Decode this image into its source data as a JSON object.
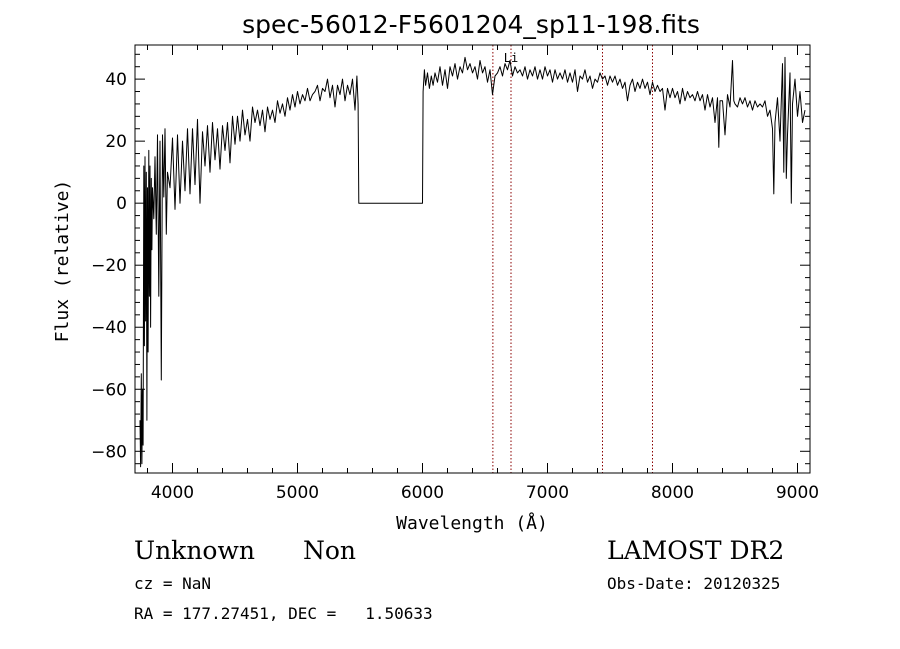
{
  "chart_data": {
    "type": "line",
    "title": "spec-56012-F5601204_sp11-198.fits",
    "xlabel": "Wavelength (Å)",
    "ylabel": "Flux (relative)",
    "xlim": [
      3700,
      9100
    ],
    "ylim": [
      -87,
      51
    ],
    "x_ticks": [
      4000,
      5000,
      6000,
      7000,
      8000,
      9000
    ],
    "y_ticks": [
      -80,
      -60,
      -40,
      -20,
      0,
      20,
      40
    ],
    "grid": false,
    "line_color": "#000000",
    "marker_color": "#8b0000",
    "markers": [
      {
        "x": 6563,
        "label": ""
      },
      {
        "x": 6708,
        "label": "Li"
      },
      {
        "x": 7440,
        "label": ""
      },
      {
        "x": 7840,
        "label": ""
      }
    ],
    "series": [
      {
        "values": [
          [
            3740,
            -70
          ],
          [
            3745,
            -85
          ],
          [
            3750,
            -55
          ],
          [
            3755,
            -84
          ],
          [
            3760,
            -60
          ],
          [
            3765,
            -78
          ],
          [
            3770,
            12
          ],
          [
            3775,
            -46
          ],
          [
            3780,
            15
          ],
          [
            3785,
            -38
          ],
          [
            3790,
            10
          ],
          [
            3795,
            -70
          ],
          [
            3800,
            5
          ],
          [
            3805,
            -48
          ],
          [
            3810,
            17
          ],
          [
            3815,
            -30
          ],
          [
            3820,
            12
          ],
          [
            3825,
            -40
          ],
          [
            3830,
            8
          ],
          [
            3835,
            -15
          ],
          [
            3840,
            5
          ],
          [
            3850,
            -5
          ],
          [
            3860,
            15
          ],
          [
            3870,
            -10
          ],
          [
            3880,
            22
          ],
          [
            3890,
            -30
          ],
          [
            3900,
            20
          ],
          [
            3910,
            -57
          ],
          [
            3920,
            22
          ],
          [
            3930,
            2
          ],
          [
            3940,
            24
          ],
          [
            3950,
            -10
          ],
          [
            3960,
            10
          ],
          [
            3980,
            5
          ],
          [
            4000,
            21
          ],
          [
            4020,
            -2
          ],
          [
            4040,
            22
          ],
          [
            4060,
            0
          ],
          [
            4080,
            20
          ],
          [
            4100,
            4
          ],
          [
            4120,
            24
          ],
          [
            4140,
            3
          ],
          [
            4160,
            24
          ],
          [
            4180,
            6
          ],
          [
            4200,
            27
          ],
          [
            4220,
            0
          ],
          [
            4240,
            23
          ],
          [
            4260,
            12
          ],
          [
            4280,
            25
          ],
          [
            4300,
            10
          ],
          [
            4320,
            26
          ],
          [
            4340,
            14
          ],
          [
            4360,
            24
          ],
          [
            4380,
            11
          ],
          [
            4400,
            25
          ],
          [
            4420,
            17
          ],
          [
            4440,
            26
          ],
          [
            4460,
            13
          ],
          [
            4480,
            28
          ],
          [
            4500,
            19
          ],
          [
            4520,
            28
          ],
          [
            4540,
            20
          ],
          [
            4560,
            30
          ],
          [
            4580,
            22
          ],
          [
            4600,
            27
          ],
          [
            4620,
            20
          ],
          [
            4640,
            31
          ],
          [
            4660,
            26
          ],
          [
            4680,
            30
          ],
          [
            4700,
            25
          ],
          [
            4720,
            30
          ],
          [
            4740,
            23
          ],
          [
            4760,
            31
          ],
          [
            4780,
            27
          ],
          [
            4800,
            30
          ],
          [
            4820,
            26
          ],
          [
            4840,
            33
          ],
          [
            4860,
            29
          ],
          [
            4880,
            32
          ],
          [
            4900,
            28
          ],
          [
            4920,
            34
          ],
          [
            4940,
            30
          ],
          [
            4960,
            35
          ],
          [
            4980,
            31
          ],
          [
            5000,
            36
          ],
          [
            5020,
            32
          ],
          [
            5040,
            35
          ],
          [
            5060,
            33
          ],
          [
            5080,
            37
          ],
          [
            5100,
            33
          ],
          [
            5120,
            35
          ],
          [
            5140,
            36
          ],
          [
            5160,
            38
          ],
          [
            5180,
            33
          ],
          [
            5200,
            37
          ],
          [
            5220,
            36
          ],
          [
            5240,
            40
          ],
          [
            5260,
            34
          ],
          [
            5280,
            38
          ],
          [
            5300,
            31
          ],
          [
            5320,
            38
          ],
          [
            5340,
            35
          ],
          [
            5360,
            40
          ],
          [
            5380,
            33
          ],
          [
            5400,
            38
          ],
          [
            5420,
            35
          ],
          [
            5440,
            40
          ],
          [
            5460,
            30
          ],
          [
            5475,
            41
          ],
          [
            5485,
            32
          ],
          [
            5490,
            0
          ],
          [
            6000,
            0
          ],
          [
            6005,
            36
          ],
          [
            6015,
            43
          ],
          [
            6025,
            38
          ],
          [
            6040,
            42
          ],
          [
            6055,
            37
          ],
          [
            6070,
            41
          ],
          [
            6085,
            38
          ],
          [
            6100,
            42
          ],
          [
            6120,
            39
          ],
          [
            6140,
            44
          ],
          [
            6160,
            38
          ],
          [
            6180,
            43
          ],
          [
            6200,
            37
          ],
          [
            6220,
            44
          ],
          [
            6240,
            41
          ],
          [
            6260,
            45
          ],
          [
            6280,
            40
          ],
          [
            6300,
            44
          ],
          [
            6320,
            42
          ],
          [
            6340,
            47
          ],
          [
            6360,
            43
          ],
          [
            6380,
            45
          ],
          [
            6400,
            42
          ],
          [
            6420,
            44
          ],
          [
            6440,
            40
          ],
          [
            6460,
            46
          ],
          [
            6480,
            42
          ],
          [
            6500,
            44
          ],
          [
            6520,
            39
          ],
          [
            6540,
            43
          ],
          [
            6560,
            35
          ],
          [
            6580,
            41
          ],
          [
            6600,
            42
          ],
          [
            6620,
            44
          ],
          [
            6640,
            41
          ],
          [
            6660,
            45
          ],
          [
            6680,
            43
          ],
          [
            6700,
            46
          ],
          [
            6720,
            41
          ],
          [
            6740,
            44
          ],
          [
            6760,
            42
          ],
          [
            6780,
            43
          ],
          [
            6800,
            41
          ],
          [
            6820,
            44
          ],
          [
            6840,
            40
          ],
          [
            6860,
            43
          ],
          [
            6880,
            41
          ],
          [
            6900,
            44
          ],
          [
            6920,
            40
          ],
          [
            6940,
            43
          ],
          [
            6960,
            40
          ],
          [
            6980,
            44
          ],
          [
            7000,
            41
          ],
          [
            7020,
            43
          ],
          [
            7040,
            39
          ],
          [
            7060,
            43
          ],
          [
            7080,
            40
          ],
          [
            7100,
            42
          ],
          [
            7120,
            40
          ],
          [
            7140,
            43
          ],
          [
            7160,
            39
          ],
          [
            7180,
            42
          ],
          [
            7200,
            39
          ],
          [
            7220,
            43
          ],
          [
            7240,
            36
          ],
          [
            7260,
            41
          ],
          [
            7280,
            40
          ],
          [
            7300,
            43
          ],
          [
            7320,
            39
          ],
          [
            7340,
            41
          ],
          [
            7360,
            37
          ],
          [
            7380,
            40
          ],
          [
            7400,
            39
          ],
          [
            7420,
            42
          ],
          [
            7440,
            40
          ],
          [
            7460,
            41
          ],
          [
            7480,
            38
          ],
          [
            7500,
            41
          ],
          [
            7520,
            39
          ],
          [
            7540,
            41
          ],
          [
            7560,
            38
          ],
          [
            7580,
            40
          ],
          [
            7600,
            37
          ],
          [
            7620,
            39
          ],
          [
            7640,
            33
          ],
          [
            7660,
            38
          ],
          [
            7680,
            40
          ],
          [
            7700,
            36
          ],
          [
            7720,
            39
          ],
          [
            7740,
            37
          ],
          [
            7760,
            40
          ],
          [
            7780,
            37
          ],
          [
            7800,
            39
          ],
          [
            7820,
            35
          ],
          [
            7840,
            39
          ],
          [
            7860,
            36
          ],
          [
            7880,
            38
          ],
          [
            7900,
            36
          ],
          [
            7920,
            37
          ],
          [
            7940,
            30
          ],
          [
            7960,
            37
          ],
          [
            7980,
            34
          ],
          [
            8000,
            37
          ],
          [
            8020,
            34
          ],
          [
            8040,
            36
          ],
          [
            8060,
            32
          ],
          [
            8080,
            37
          ],
          [
            8100,
            33
          ],
          [
            8120,
            36
          ],
          [
            8140,
            34
          ],
          [
            8160,
            35
          ],
          [
            8180,
            33
          ],
          [
            8200,
            36
          ],
          [
            8220,
            33
          ],
          [
            8240,
            35
          ],
          [
            8260,
            30
          ],
          [
            8280,
            35
          ],
          [
            8300,
            31
          ],
          [
            8320,
            34
          ],
          [
            8340,
            26
          ],
          [
            8360,
            34
          ],
          [
            8370,
            18
          ],
          [
            8380,
            33
          ],
          [
            8400,
            33
          ],
          [
            8420,
            22
          ],
          [
            8440,
            35
          ],
          [
            8460,
            31
          ],
          [
            8480,
            46
          ],
          [
            8490,
            33
          ],
          [
            8500,
            32
          ],
          [
            8520,
            31
          ],
          [
            8540,
            34
          ],
          [
            8560,
            32
          ],
          [
            8580,
            34
          ],
          [
            8600,
            31
          ],
          [
            8620,
            33
          ],
          [
            8640,
            30
          ],
          [
            8660,
            33
          ],
          [
            8680,
            31
          ],
          [
            8700,
            32
          ],
          [
            8720,
            31
          ],
          [
            8740,
            33
          ],
          [
            8760,
            28
          ],
          [
            8780,
            30
          ],
          [
            8800,
            24
          ],
          [
            8810,
            3
          ],
          [
            8820,
            26
          ],
          [
            8840,
            34
          ],
          [
            8860,
            20
          ],
          [
            8880,
            45
          ],
          [
            8890,
            10
          ],
          [
            8900,
            47
          ],
          [
            8910,
            8
          ],
          [
            8920,
            22
          ],
          [
            8940,
            42
          ],
          [
            8950,
            0
          ],
          [
            8960,
            32
          ],
          [
            8980,
            40
          ],
          [
            9000,
            28
          ],
          [
            9020,
            36
          ],
          [
            9040,
            26
          ],
          [
            9060,
            30
          ]
        ]
      }
    ]
  },
  "info": {
    "object_class": "Unknown",
    "subclass": "Non",
    "survey": "LAMOST DR2",
    "redshift": "cz = NaN",
    "obs_date": "Obs-Date: 20120325",
    "coords": "RA = 177.27451, DEC =   1.50633"
  }
}
